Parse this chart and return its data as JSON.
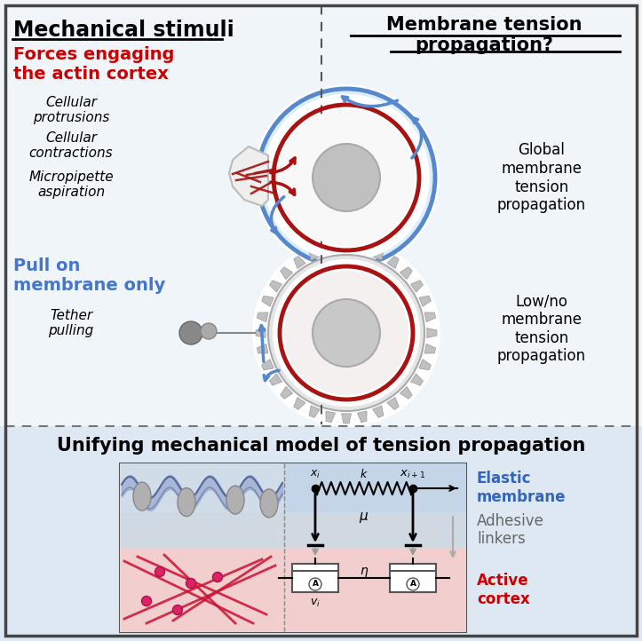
{
  "bg_white": "#f5f7fa",
  "bg_blue_light": "#dce8f2",
  "title_left": "Mechanical stimuli",
  "title_right": "Membrane tension\npropagation?",
  "subtitle_red": "Forces engaging\nthe actin cortex",
  "subtitle_blue": "Pull on\nmembrane only",
  "items_top": [
    "Cellular\nprotrusions",
    "Cellular\ncontractions",
    "Micropipette\naspiration"
  ],
  "item_bottom": "Tether\npulling",
  "right_top_text": "Global\nmembrane\ntension\npropagation",
  "right_bottom_text": "Low/no\nmembrane\ntension\npropagation",
  "bottom_title": "Unifying mechanical model of tension propagation",
  "label_elastic": "Elastic\nmembrane",
  "label_adhesive": "Adhesive\nlinkers",
  "label_active": "Active\ncortex",
  "red": "#cc0000",
  "blue": "#4477cc",
  "dark_blue_label": "#3366bb",
  "gray": "#999999",
  "dark_gray": "#666666",
  "elastic_bg": "#c5d5e8",
  "adhesive_bg": "#d0d8e2",
  "active_bg": "#f2cece",
  "cell_blue": "#5588cc",
  "cell_red": "#aa1111",
  "gear_gray": "#b0b0b0",
  "nucleus_gray": "#c0c0c0"
}
